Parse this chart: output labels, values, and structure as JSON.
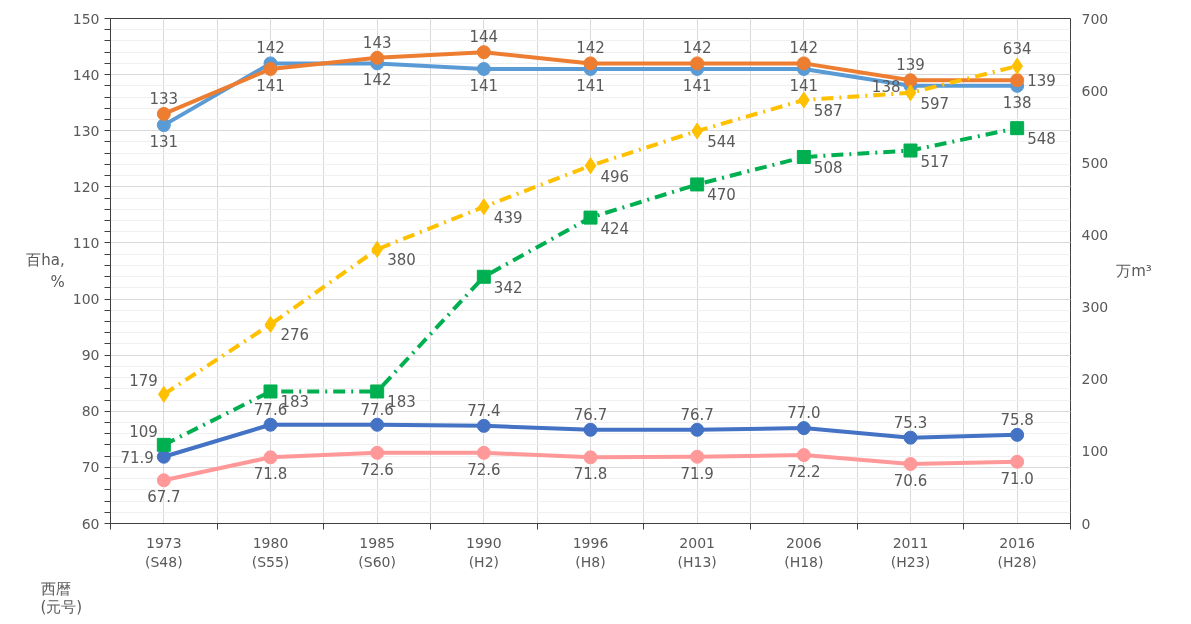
{
  "chart_data": {
    "type": "line",
    "xlabel": "西暦\n(元号)",
    "ylabel": "百ha,\n%",
    "y2label": "万m³",
    "categories": [
      "1973\n(S48)",
      "1980\n(S55)",
      "1985\n(S60)",
      "1990\n(H2)",
      "1996\n(H8)",
      "2001\n(H13)",
      "2006\n(H18)",
      "2011\n(H23)",
      "2016\n(H28)"
    ],
    "series": [
      {
        "color": "#5b9bd5",
        "marker": "circle",
        "line_style": "solid",
        "values": [
          131,
          142,
          142,
          141,
          141,
          141,
          141,
          138,
          138
        ]
      },
      {
        "color": "#ed7d31",
        "marker": "circle",
        "line_style": "solid",
        "values": [
          133,
          141,
          143,
          144,
          142,
          142,
          142,
          139,
          139
        ]
      },
      {
        "color": "#4472c4",
        "marker": "circle",
        "line_style": "solid",
        "values": [
          71.9,
          77.6,
          77.6,
          77.4,
          76.7,
          76.7,
          77.0,
          75.3,
          75.8
        ],
        "value_labels": [
          "71.9",
          "77.6",
          "77.6",
          "77.4",
          "76.7",
          "76.7",
          "77.0",
          "75.3",
          "75.8"
        ]
      },
      {
        "color": "#ff9999",
        "marker": "circle",
        "line_style": "solid",
        "values": [
          67.7,
          71.8,
          72.6,
          72.6,
          71.8,
          71.9,
          72.2,
          70.6,
          71.0
        ],
        "value_labels": [
          "67.7",
          "71.8",
          "72.6",
          "72.6",
          "71.8",
          "71.9",
          "72.2",
          "70.6",
          "71.0"
        ]
      },
      {
        "color": "#ffc000",
        "marker": "diamond",
        "line_style": "dashed",
        "axis": "y2",
        "values": [
          179,
          276,
          380,
          439,
          496,
          544,
          587,
          597,
          634
        ]
      },
      {
        "color": "#00b050",
        "marker": "square",
        "line_style": "dashed",
        "axis": "y2",
        "values": [
          109,
          183,
          183,
          342,
          424,
          470,
          508,
          517,
          548
        ]
      }
    ],
    "ylim": [
      60,
      150
    ],
    "yticks": [
      60,
      70,
      80,
      90,
      100,
      110,
      120,
      130,
      140,
      150
    ],
    "y2lim": [
      0,
      700
    ],
    "y2ticks": [
      0,
      100,
      200,
      300,
      400,
      500,
      600,
      700
    ],
    "grid": true,
    "data_labels": true
  }
}
